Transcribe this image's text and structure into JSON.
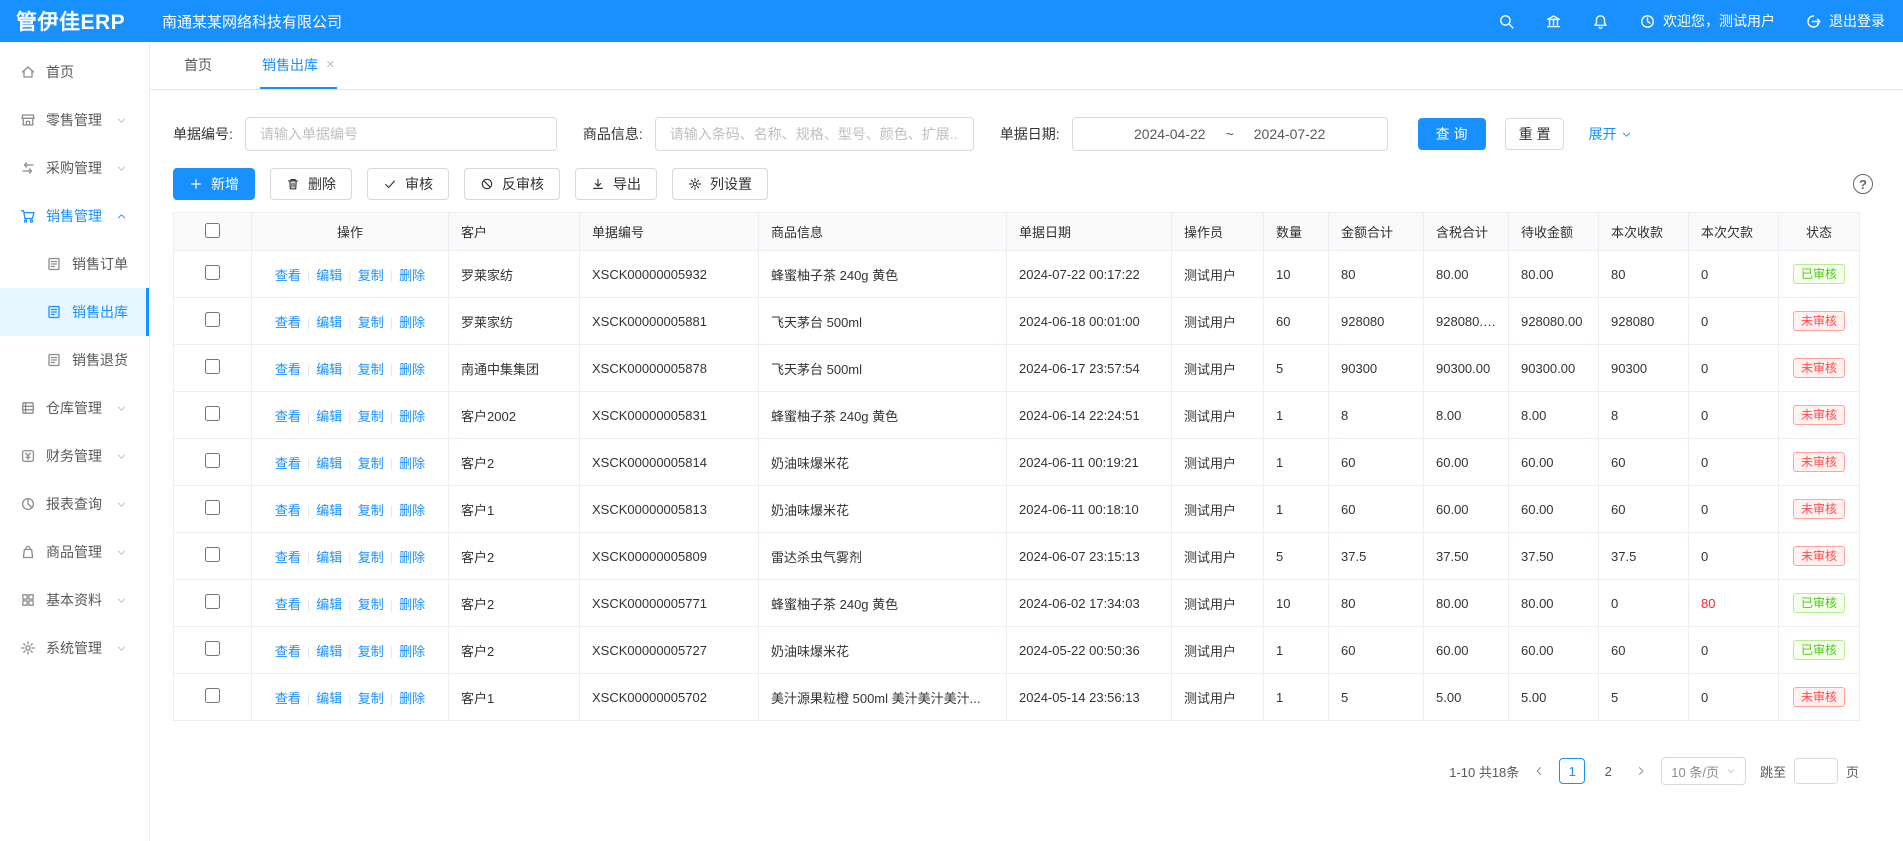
{
  "theme": {
    "primary": "#1890ff",
    "header_bg": "#1890ff",
    "active_menu_bg": "#e6f7ff",
    "approved_color": "#52c41a",
    "unapproved_color": "#ff4d4f",
    "overdue_text_color": "#f5222d"
  },
  "topbar": {
    "logo": "管伊佳ERP",
    "company": "南通某某网络科技有限公司",
    "welcome": "欢迎您，测试用户",
    "logout": "退出登录",
    "icons": [
      "search",
      "bank",
      "bell"
    ]
  },
  "tabs": [
    {
      "key": "home",
      "label": "首页",
      "active": false,
      "closable": false
    },
    {
      "key": "sales-out",
      "label": "销售出库",
      "active": true,
      "closable": true
    }
  ],
  "sidebar": {
    "items": [
      {
        "key": "home",
        "label": "首页",
        "icon": "home",
        "level": 1
      },
      {
        "key": "retail",
        "label": "零售管理",
        "icon": "shop",
        "level": 1,
        "expandable": true
      },
      {
        "key": "purchase",
        "label": "采购管理",
        "icon": "swap",
        "level": 1,
        "expandable": true
      },
      {
        "key": "sales",
        "label": "销售管理",
        "icon": "cart",
        "level": 1,
        "expandable": true,
        "expanded": true,
        "active": true
      },
      {
        "key": "sales-order",
        "label": "销售订单",
        "icon": "doc",
        "level": 2
      },
      {
        "key": "sales-out",
        "label": "销售出库",
        "icon": "doc",
        "level": 2,
        "selected": true
      },
      {
        "key": "sales-return",
        "label": "销售退货",
        "icon": "doc",
        "level": 2
      },
      {
        "key": "warehouse",
        "label": "仓库管理",
        "icon": "warehouse",
        "level": 1,
        "expandable": true
      },
      {
        "key": "finance",
        "label": "财务管理",
        "icon": "finance",
        "level": 1,
        "expandable": true
      },
      {
        "key": "report",
        "label": "报表查询",
        "icon": "report",
        "level": 1,
        "expandable": true
      },
      {
        "key": "goods",
        "label": "商品管理",
        "icon": "goods",
        "level": 1,
        "expandable": true
      },
      {
        "key": "basic",
        "label": "基本资料",
        "icon": "basic",
        "level": 1,
        "expandable": true
      },
      {
        "key": "system",
        "label": "系统管理",
        "icon": "system",
        "level": 1,
        "expandable": true
      }
    ]
  },
  "filters": {
    "doc_no_label": "单据编号:",
    "doc_no_placeholder": "请输入单据编号",
    "product_label": "商品信息:",
    "product_placeholder": "请输入条码、名称、规格、型号、颜色、扩展...",
    "date_label": "单据日期:",
    "date_start": "2024-04-22",
    "date_separator": "~",
    "date_end": "2024-07-22",
    "search_button": "查 询",
    "reset_button": "重 置",
    "expand_link": "展开"
  },
  "toolbar": {
    "buttons": [
      {
        "key": "add",
        "label": "新增",
        "icon": "plus",
        "primary": true
      },
      {
        "key": "delete",
        "label": "删除",
        "icon": "trash"
      },
      {
        "key": "audit",
        "label": "审核",
        "icon": "check"
      },
      {
        "key": "unaudit",
        "label": "反审核",
        "icon": "ban"
      },
      {
        "key": "export",
        "label": "导出",
        "icon": "download"
      },
      {
        "key": "columns",
        "label": "列设置",
        "icon": "gear"
      }
    ],
    "help": "?"
  },
  "table": {
    "headers": [
      "操作",
      "客户",
      "单据编号",
      "商品信息",
      "单据日期",
      "操作员",
      "数量",
      "金额合计",
      "含税合计",
      "待收金额",
      "本次收款",
      "本次欠款",
      "状态"
    ],
    "ops_labels": [
      "查看",
      "编辑",
      "复制",
      "删除"
    ],
    "status_styles": {
      "已审核": "green",
      "未审核": "red"
    },
    "rows": [
      {
        "customer": "罗莱家纺",
        "doc_no": "XSCK00000005932",
        "product": "蜂蜜柚子茶 240g 黄色",
        "date": "2024-07-22 00:17:22",
        "operator": "测试用户",
        "qty": "10",
        "amount": "80",
        "amount_tax": "80.00",
        "receivable": "80.00",
        "received": "80",
        "owed": "0",
        "owed_red": false,
        "status": "已审核"
      },
      {
        "customer": "罗莱家纺",
        "doc_no": "XSCK00000005881",
        "product": "飞天茅台 500ml",
        "date": "2024-06-18 00:01:00",
        "operator": "测试用户",
        "qty": "60",
        "amount": "928080",
        "amount_tax": "928080.00",
        "receivable": "928080.00",
        "received": "928080",
        "owed": "0",
        "owed_red": false,
        "status": "未审核"
      },
      {
        "customer": "南通中集集团",
        "doc_no": "XSCK00000005878",
        "product": "飞天茅台 500ml",
        "date": "2024-06-17 23:57:54",
        "operator": "测试用户",
        "qty": "5",
        "amount": "90300",
        "amount_tax": "90300.00",
        "receivable": "90300.00",
        "received": "90300",
        "owed": "0",
        "owed_red": false,
        "status": "未审核"
      },
      {
        "customer": "客户2002",
        "doc_no": "XSCK00000005831",
        "product": "蜂蜜柚子茶 240g 黄色",
        "date": "2024-06-14 22:24:51",
        "operator": "测试用户",
        "qty": "1",
        "amount": "8",
        "amount_tax": "8.00",
        "receivable": "8.00",
        "received": "8",
        "owed": "0",
        "owed_red": false,
        "status": "未审核"
      },
      {
        "customer": "客户2",
        "doc_no": "XSCK00000005814",
        "product": "奶油味爆米花",
        "date": "2024-06-11 00:19:21",
        "operator": "测试用户",
        "qty": "1",
        "amount": "60",
        "amount_tax": "60.00",
        "receivable": "60.00",
        "received": "60",
        "owed": "0",
        "owed_red": false,
        "status": "未审核"
      },
      {
        "customer": "客户1",
        "doc_no": "XSCK00000005813",
        "product": "奶油味爆米花",
        "date": "2024-06-11 00:18:10",
        "operator": "测试用户",
        "qty": "1",
        "amount": "60",
        "amount_tax": "60.00",
        "receivable": "60.00",
        "received": "60",
        "owed": "0",
        "owed_red": false,
        "status": "未审核"
      },
      {
        "customer": "客户2",
        "doc_no": "XSCK00000005809",
        "product": "雷达杀虫气雾剂",
        "date": "2024-06-07 23:15:13",
        "operator": "测试用户",
        "qty": "5",
        "amount": "37.5",
        "amount_tax": "37.50",
        "receivable": "37.50",
        "received": "37.5",
        "owed": "0",
        "owed_red": false,
        "status": "未审核"
      },
      {
        "customer": "客户2",
        "doc_no": "XSCK00000005771",
        "product": "蜂蜜柚子茶 240g 黄色",
        "date": "2024-06-02 17:34:03",
        "operator": "测试用户",
        "qty": "10",
        "amount": "80",
        "amount_tax": "80.00",
        "receivable": "80.00",
        "received": "0",
        "owed": "80",
        "owed_red": true,
        "status": "已审核"
      },
      {
        "customer": "客户2",
        "doc_no": "XSCK00000005727",
        "product": "奶油味爆米花",
        "date": "2024-05-22 00:50:36",
        "operator": "测试用户",
        "qty": "1",
        "amount": "60",
        "amount_tax": "60.00",
        "receivable": "60.00",
        "received": "60",
        "owed": "0",
        "owed_red": false,
        "status": "已审核"
      },
      {
        "customer": "客户1",
        "doc_no": "XSCK00000005702",
        "product": "美汁源果粒橙 500ml 美汁美汁美汁...",
        "date": "2024-05-14 23:56:13",
        "operator": "测试用户",
        "qty": "1",
        "amount": "5",
        "amount_tax": "5.00",
        "receivable": "5.00",
        "received": "5",
        "owed": "0",
        "owed_red": false,
        "status": "未审核"
      }
    ]
  },
  "pagination": {
    "total_text": "1-10 共18条",
    "pages": [
      "1",
      "2"
    ],
    "current_page": "1",
    "page_size": "10 条/页",
    "jump_label": "跳至",
    "jump_suffix": "页"
  }
}
